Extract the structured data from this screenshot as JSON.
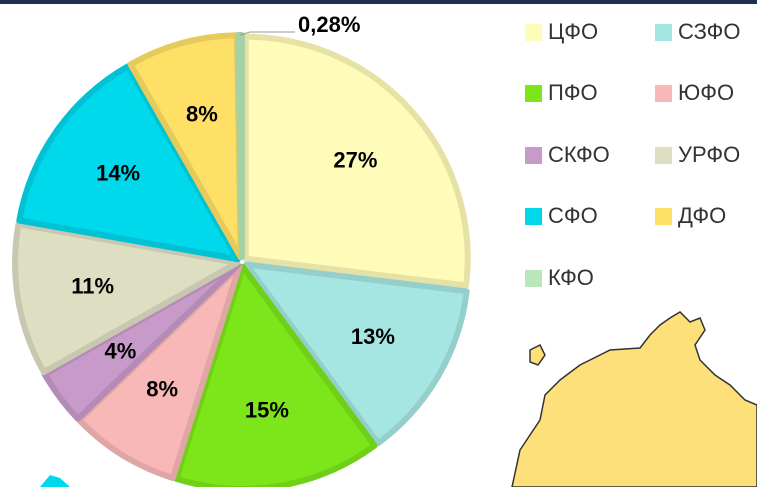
{
  "chart_data": {
    "type": "pie",
    "categories": [
      "ЦФО",
      "СЗФО",
      "ПФО",
      "ЮФО",
      "СКФО",
      "УРФО",
      "СФО",
      "ДФО",
      "КФО"
    ],
    "values": [
      27,
      13,
      15,
      8,
      4,
      11,
      14,
      8,
      0.28
    ],
    "value_labels": [
      "27%",
      "13%",
      "15%",
      "8%",
      "4%",
      "11%",
      "14%",
      "8%",
      "0,28%"
    ],
    "colors": [
      "#fffbb8",
      "#a6e6e2",
      "#7ce61a",
      "#f9b8b8",
      "#c79ac9",
      "#dedec3",
      "#00d8ec",
      "#ffe066",
      "#b8e8b8"
    ],
    "legend": "right"
  }
}
